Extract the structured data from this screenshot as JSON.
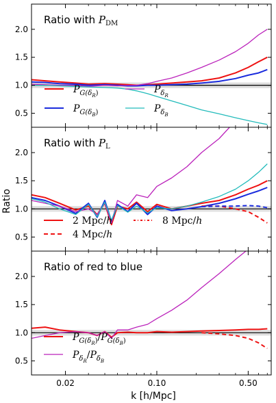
{
  "figure": {
    "ylabel": "Ratio",
    "xlabel": "k [h/Mpc]",
    "xticks": [
      "0.02",
      "0.10",
      "0.50"
    ]
  },
  "chart_data": [
    {
      "type": "line",
      "title": "Ratio with P_DM",
      "title_text": "Ratio with ",
      "title_symbol": "P",
      "title_sub": "DM",
      "xscale": "log",
      "xlim": [
        0.011,
        0.75
      ],
      "ylim": [
        0.25,
        2.45
      ],
      "yticks": [
        "2.0",
        "1.5",
        "1.0",
        "0.5"
      ],
      "reference_line": 1.0,
      "band": [
        0.95,
        1.05
      ],
      "legend": [
        {
          "symbol": "P",
          "sub": "G(δ",
          "subsub": "R",
          "close": ")",
          "color": "#ee1111",
          "style": "solid"
        },
        {
          "symbol": "P",
          "sub": "δ",
          "subsub": "R",
          "close": "",
          "color": "#bb22bb",
          "style": "solid"
        },
        {
          "symbol": "P",
          "sub": "G(δ",
          "subsub": "B",
          "close": ")",
          "color": "#1a2bdd",
          "style": "solid"
        },
        {
          "symbol": "P",
          "sub": "δ",
          "subsub": "B",
          "close": "",
          "color": "#22bbbb",
          "style": "solid"
        }
      ],
      "series": [
        {
          "name": "P_G(δR)",
          "color": "#ee1111",
          "dash": "",
          "width": 2,
          "x": [
            0.011,
            0.014,
            0.018,
            0.024,
            0.03,
            0.04,
            0.05,
            0.06,
            0.07,
            0.085,
            0.1,
            0.13,
            0.17,
            0.22,
            0.3,
            0.4,
            0.5,
            0.6,
            0.7
          ],
          "y": [
            1.1,
            1.08,
            1.06,
            1.04,
            1.02,
            1.03,
            1.02,
            1.01,
            1.0,
            1.01,
            1.02,
            1.04,
            1.06,
            1.08,
            1.13,
            1.22,
            1.32,
            1.42,
            1.5
          ]
        },
        {
          "name": "P_G(δB)",
          "color": "#1a2bdd",
          "dash": "",
          "width": 2,
          "x": [
            0.011,
            0.014,
            0.018,
            0.024,
            0.03,
            0.04,
            0.05,
            0.06,
            0.07,
            0.085,
            0.1,
            0.13,
            0.17,
            0.22,
            0.3,
            0.4,
            0.5,
            0.6,
            0.7
          ],
          "y": [
            1.06,
            1.05,
            1.03,
            1.02,
            1.0,
            1.01,
            1.0,
            0.99,
            0.99,
            1.0,
            1.0,
            1.01,
            1.02,
            1.04,
            1.07,
            1.12,
            1.18,
            1.22,
            1.28
          ]
        },
        {
          "name": "P_δR",
          "color": "#bb22bb",
          "dash": "",
          "width": 1.3,
          "x": [
            0.011,
            0.014,
            0.018,
            0.024,
            0.03,
            0.04,
            0.05,
            0.06,
            0.07,
            0.085,
            0.1,
            0.13,
            0.17,
            0.22,
            0.3,
            0.4,
            0.5,
            0.6,
            0.7
          ],
          "y": [
            1.02,
            1.01,
            1.0,
            1.0,
            0.98,
            1.0,
            0.99,
            1.0,
            1.0,
            1.03,
            1.07,
            1.13,
            1.22,
            1.32,
            1.45,
            1.6,
            1.75,
            1.9,
            2.0
          ]
        },
        {
          "name": "P_δB",
          "color": "#22bbbb",
          "dash": "",
          "width": 1.3,
          "x": [
            0.011,
            0.014,
            0.018,
            0.024,
            0.03,
            0.04,
            0.05,
            0.06,
            0.07,
            0.085,
            0.1,
            0.13,
            0.17,
            0.22,
            0.3,
            0.4,
            0.5,
            0.6,
            0.7
          ],
          "y": [
            1.0,
            1.0,
            0.99,
            0.98,
            0.97,
            0.96,
            0.95,
            0.93,
            0.9,
            0.85,
            0.8,
            0.72,
            0.64,
            0.56,
            0.49,
            0.42,
            0.37,
            0.33,
            0.3
          ]
        }
      ]
    },
    {
      "type": "line",
      "title": "Ratio with P_L",
      "title_text": "Ratio with ",
      "title_symbol": "P",
      "title_sub": "L",
      "xscale": "log",
      "xlim": [
        0.011,
        0.75
      ],
      "ylim": [
        0.25,
        2.45
      ],
      "yticks": [
        "2.0",
        "1.5",
        "1.0",
        "0.5"
      ],
      "reference_line": 1.0,
      "band": [
        0.95,
        1.05
      ],
      "legend": [
        {
          "label": "2 Mpc/",
          "italic": "h",
          "dash": "",
          "color": "#ee1111"
        },
        {
          "label": "8 Mpc/",
          "italic": "h",
          "dash": "3,3,1,3",
          "color": "#ee1111"
        },
        {
          "label": "4 Mpc/",
          "italic": "h",
          "dash": "6,4",
          "color": "#ee1111"
        }
      ],
      "series": [
        {
          "name": "P_G(δR)",
          "color": "#ee1111",
          "dash": "",
          "width": 2,
          "x": [
            0.011,
            0.014,
            0.018,
            0.024,
            0.03,
            0.035,
            0.04,
            0.045,
            0.05,
            0.06,
            0.07,
            0.085,
            0.1,
            0.13,
            0.17,
            0.22,
            0.3,
            0.4,
            0.5,
            0.6,
            0.7
          ],
          "y": [
            1.25,
            1.2,
            1.1,
            0.98,
            1.05,
            0.9,
            1.1,
            0.72,
            1.05,
            1.0,
            1.12,
            0.95,
            1.08,
            1.0,
            1.05,
            1.1,
            1.15,
            1.25,
            1.35,
            1.42,
            1.5
          ]
        },
        {
          "name": "P_G(δB)",
          "color": "#1a2bdd",
          "dash": "",
          "width": 2,
          "x": [
            0.011,
            0.014,
            0.018,
            0.024,
            0.03,
            0.035,
            0.04,
            0.045,
            0.05,
            0.06,
            0.07,
            0.085,
            0.1,
            0.13,
            0.17,
            0.22,
            0.3,
            0.4,
            0.5,
            0.6,
            0.7
          ],
          "y": [
            1.2,
            1.15,
            1.05,
            0.92,
            1.1,
            0.85,
            1.15,
            0.78,
            1.08,
            0.95,
            1.1,
            0.9,
            1.05,
            0.97,
            1.0,
            1.04,
            1.1,
            1.18,
            1.26,
            1.32,
            1.38
          ]
        },
        {
          "name": "P_δR",
          "color": "#bb22bb",
          "dash": "",
          "width": 1.3,
          "x": [
            0.011,
            0.014,
            0.018,
            0.024,
            0.03,
            0.035,
            0.04,
            0.045,
            0.05,
            0.06,
            0.07,
            0.085,
            0.1,
            0.13,
            0.17,
            0.22,
            0.3,
            0.36
          ],
          "y": [
            1.15,
            1.1,
            1.05,
            0.95,
            1.0,
            0.9,
            1.1,
            0.75,
            1.15,
            1.05,
            1.25,
            1.2,
            1.4,
            1.55,
            1.75,
            2.0,
            2.25,
            2.45
          ]
        },
        {
          "name": "P_δB",
          "color": "#22bbbb",
          "dash": "",
          "width": 1.3,
          "x": [
            0.011,
            0.014,
            0.018,
            0.024,
            0.03,
            0.035,
            0.04,
            0.045,
            0.05,
            0.06,
            0.07,
            0.085,
            0.1,
            0.13,
            0.17,
            0.22,
            0.3,
            0.4,
            0.5,
            0.6,
            0.7
          ],
          "y": [
            1.18,
            1.12,
            1.0,
            0.9,
            1.08,
            0.86,
            1.12,
            0.8,
            1.06,
            0.94,
            1.05,
            0.93,
            1.02,
            1.0,
            1.05,
            1.12,
            1.22,
            1.35,
            1.5,
            1.65,
            1.8
          ]
        },
        {
          "name": "P_G(δR) 4 Mpc/h",
          "color": "#ee1111",
          "dash": "6,4",
          "width": 2,
          "x": [
            0.22,
            0.3,
            0.4,
            0.5,
            0.6,
            0.7
          ],
          "y": [
            1.05,
            1.05,
            1.0,
            0.95,
            0.85,
            0.75
          ]
        },
        {
          "name": "P_G(δB) 4 Mpc/h",
          "color": "#1a2bdd",
          "dash": "6,4",
          "width": 2,
          "x": [
            0.22,
            0.3,
            0.4,
            0.5,
            0.6,
            0.7
          ],
          "y": [
            1.04,
            1.05,
            1.05,
            1.06,
            1.05,
            1.02
          ]
        }
      ]
    },
    {
      "type": "line",
      "title": "Ratio of red to blue",
      "title_text": "Ratio of red to blue",
      "xscale": "log",
      "xlim": [
        0.011,
        0.75
      ],
      "ylim": [
        0.25,
        2.45
      ],
      "yticks": [
        "2.0",
        "1.5",
        "1.0",
        "0.5"
      ],
      "reference_line": 1.0,
      "band": [
        0.95,
        1.05
      ],
      "legend": [
        {
          "kind": "ratioG",
          "color": "#ee1111",
          "width": 2
        },
        {
          "kind": "ratioP",
          "color": "#bb22bb",
          "width": 1.3
        }
      ],
      "series": [
        {
          "name": "P_G(δR)/P_G(δB)",
          "color": "#ee1111",
          "dash": "",
          "width": 2,
          "x": [
            0.011,
            0.014,
            0.018,
            0.024,
            0.03,
            0.035,
            0.04,
            0.045,
            0.05,
            0.06,
            0.07,
            0.085,
            0.1,
            0.13,
            0.17,
            0.22,
            0.3,
            0.4,
            0.5,
            0.6,
            0.7
          ],
          "y": [
            1.08,
            1.1,
            1.05,
            1.02,
            1.0,
            0.95,
            1.02,
            0.92,
            1.0,
            1.01,
            1.0,
            1.0,
            1.02,
            1.01,
            1.02,
            1.03,
            1.04,
            1.05,
            1.06,
            1.06,
            1.07
          ]
        },
        {
          "name": "P_δR/P_δB",
          "color": "#bb22bb",
          "dash": "",
          "width": 1.3,
          "x": [
            0.011,
            0.014,
            0.018,
            0.024,
            0.03,
            0.035,
            0.04,
            0.045,
            0.05,
            0.06,
            0.07,
            0.085,
            0.1,
            0.13,
            0.17,
            0.22,
            0.3,
            0.4,
            0.48
          ],
          "y": [
            0.9,
            0.95,
            1.0,
            1.02,
            1.0,
            0.95,
            1.02,
            0.9,
            1.05,
            1.05,
            1.1,
            1.15,
            1.25,
            1.4,
            1.58,
            1.8,
            2.05,
            2.3,
            2.45
          ]
        },
        {
          "name": "P_G(δR)/P_G(δB) 4 Mpc/h",
          "color": "#ee1111",
          "dash": "6,4",
          "width": 2,
          "x": [
            0.22,
            0.3,
            0.4,
            0.5,
            0.6,
            0.7
          ],
          "y": [
            1.0,
            0.98,
            0.95,
            0.9,
            0.82,
            0.72
          ]
        }
      ]
    }
  ]
}
